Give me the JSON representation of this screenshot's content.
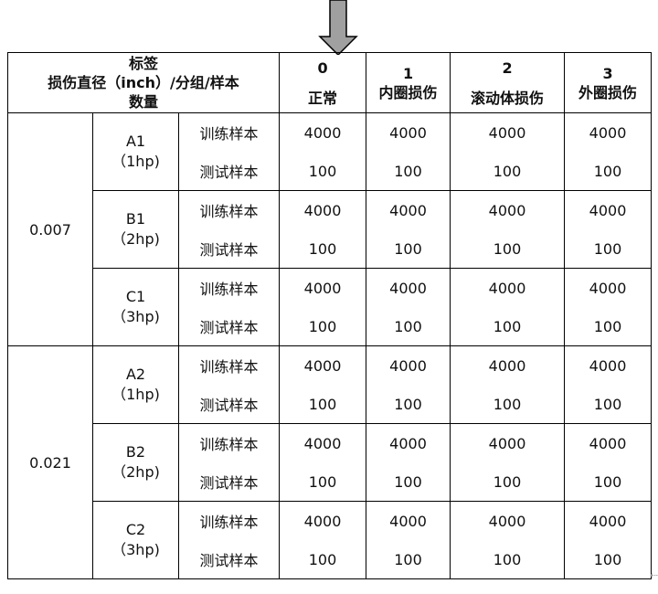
{
  "header": {
    "corner_line1": "标签",
    "corner_line2": "损伤直径（inch）/分组/样本",
    "corner_line3": "数量",
    "classes": [
      {
        "code": "0",
        "name": "正常"
      },
      {
        "code": "1",
        "name": "内圈损伤"
      },
      {
        "code": "2",
        "name": "滚动体损伤"
      },
      {
        "code": "3",
        "name": "外圈损伤"
      }
    ]
  },
  "diameters": [
    {
      "value": "0.007",
      "groups": [
        {
          "name": "A1",
          "load": "（1hp)"
        },
        {
          "name": "B1",
          "load": "（2hp)"
        },
        {
          "name": "C1",
          "load": "（3hp)"
        }
      ]
    },
    {
      "value": "0.021",
      "groups": [
        {
          "name": "A2",
          "load": "（1hp)"
        },
        {
          "name": "B2",
          "load": "（2hp)"
        },
        {
          "name": "C2",
          "load": "（3hp)"
        }
      ]
    }
  ],
  "sample_types": {
    "train": "训练样本",
    "test": "测试样本"
  },
  "counts": {
    "train": "4000",
    "test": "100"
  },
  "colors": {
    "arrow_fill": "#a0a0a0",
    "border": "#000000"
  }
}
